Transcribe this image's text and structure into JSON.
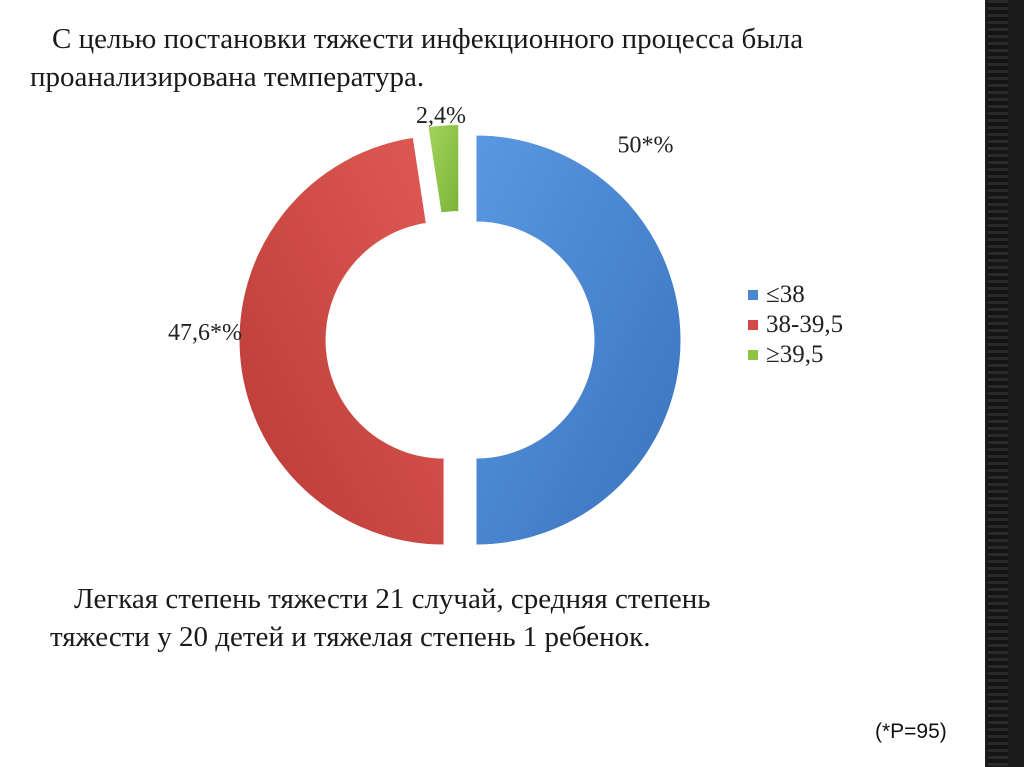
{
  "slide": {
    "heading_line1": "С целью постановки тяжести инфекционного процесса была",
    "heading_line2": "проанализирована температура.",
    "caption_line1": "Легкая степень тяжести  21 случай, средняя степень",
    "caption_line2": "тяжести  у 20 детей и тяжелая степень 1 ребенок.",
    "footnote": "(*Р=95)"
  },
  "chart_data": {
    "type": "pie",
    "style": "doughnut",
    "categories": [
      "≤38",
      "38-39,5",
      "≥39,5"
    ],
    "values": [
      50,
      47.6,
      2.4
    ],
    "data_labels": [
      "50*%",
      "47,6*%",
      "2,4%"
    ],
    "colors": [
      "#4a86d1",
      "#d24a45",
      "#8fc443"
    ],
    "legend_position": "right"
  }
}
